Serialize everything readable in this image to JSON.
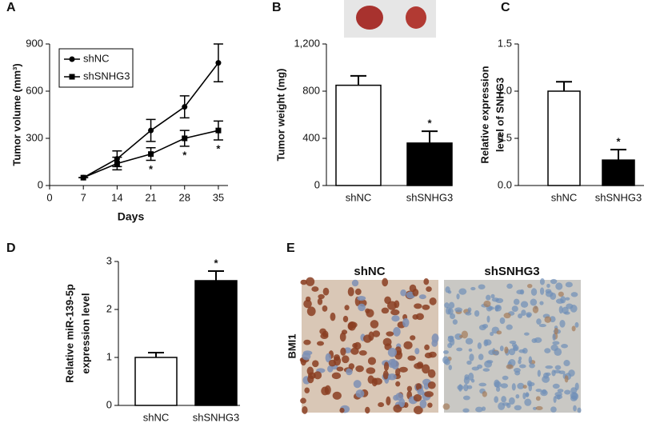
{
  "chart_data": [
    {
      "panel": "A",
      "type": "line",
      "ylabel": [
        "Tumor volume (mm³)"
      ],
      "xlabel": "Days",
      "x": [
        7,
        14,
        21,
        28,
        35
      ],
      "xlim": [
        0,
        37
      ],
      "xticks": [
        0,
        7,
        14,
        21,
        28,
        35
      ],
      "ylim": [
        0,
        900
      ],
      "yticks": [
        0,
        300,
        600,
        900
      ],
      "legend": "upper left",
      "series": [
        {
          "name": "shNC",
          "marker": "circle",
          "color": "#000000",
          "values": [
            50,
            170,
            350,
            500,
            780
          ],
          "errors": [
            0,
            50,
            70,
            70,
            120
          ]
        },
        {
          "name": "shSNHG3",
          "marker": "square",
          "color": "#000000",
          "values": [
            50,
            140,
            200,
            300,
            350
          ],
          "errors": [
            0,
            40,
            40,
            50,
            60
          ],
          "significance": [
            null,
            null,
            "*",
            "*",
            "*"
          ]
        }
      ]
    },
    {
      "panel": "B",
      "type": "bar",
      "ylabel": [
        "Tumor weight (mg)"
      ],
      "categories": [
        "shNC",
        "shSNHG3"
      ],
      "values": [
        850,
        360
      ],
      "errors": [
        80,
        100
      ],
      "colors": [
        "#ffffff",
        "#000000"
      ],
      "significance": [
        null,
        "*"
      ],
      "ylim": [
        0,
        1200
      ],
      "yticks": [
        0,
        400,
        800,
        {
          "value": 1200,
          "label": "1,200"
        }
      ]
    },
    {
      "panel": "C",
      "type": "bar",
      "ylabel": [
        "Relative expression",
        "level of SNHG3"
      ],
      "categories": [
        "shNC",
        "shSNHG3"
      ],
      "values": [
        1.0,
        0.27
      ],
      "errors": [
        0.1,
        0.11
      ],
      "colors": [
        "#ffffff",
        "#000000"
      ],
      "significance": [
        null,
        "*"
      ],
      "ylim": [
        0,
        1.5
      ],
      "yticks": [
        {
          "value": 0,
          "label": "0.0"
        },
        0.5,
        {
          "value": 1,
          "label": "1.0"
        },
        1.5
      ]
    },
    {
      "panel": "D",
      "type": "bar",
      "ylabel": [
        "Relative miR-139-5p",
        "expression level"
      ],
      "categories": [
        "shNC",
        "shSNHG3"
      ],
      "values": [
        1.0,
        2.6
      ],
      "errors": [
        0.1,
        0.2
      ],
      "colors": [
        "#ffffff",
        "#000000"
      ],
      "significance": [
        null,
        "*"
      ],
      "ylim": [
        0,
        3
      ],
      "yticks": [
        0,
        1,
        2,
        3
      ]
    }
  ],
  "figure_e": {
    "panel": "E",
    "row_label": "BMI1",
    "columns": [
      "shNC",
      "shSNHG3"
    ]
  }
}
